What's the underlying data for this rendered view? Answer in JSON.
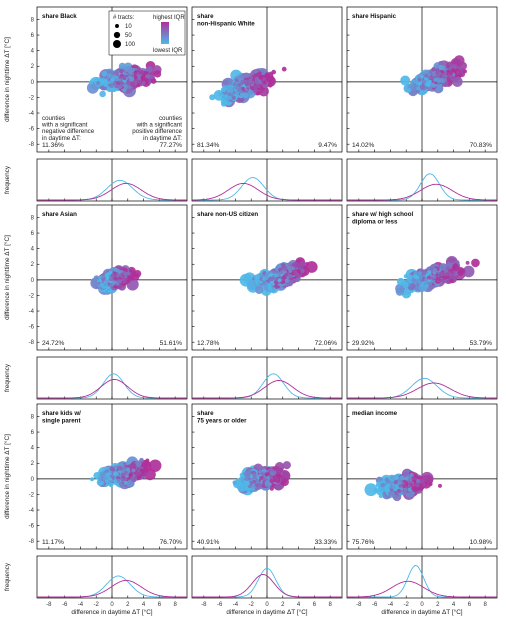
{
  "chart_data": {
    "type": "scatter",
    "colors": {
      "highest": "#b0309a",
      "lowest": "#4fb8e8",
      "frame": "#000000"
    },
    "x_axis": {
      "label": "difference in daytime ΔT [°C]",
      "ticks": [
        -8,
        -6,
        -4,
        -2,
        0,
        2,
        4,
        6,
        8
      ],
      "lim": [
        -9.5,
        9.5
      ]
    },
    "y_axis": {
      "label": "difference in nighttime ΔT [°C]",
      "ticks": [
        -8,
        -6,
        -4,
        -2,
        0,
        2,
        4,
        6,
        8
      ],
      "lim": [
        -9,
        9.6
      ]
    },
    "density_label": "frequency",
    "legend": {
      "title": "# tracts:",
      "sizes": [
        {
          "label": "10",
          "value": 10
        },
        {
          "label": "50",
          "value": 50
        },
        {
          "label": "100",
          "value": 100
        }
      ],
      "color_high": "highest IQR",
      "color_low": "lowest IQR"
    },
    "annotation": {
      "left": "counties\nwith a significant\nnegative difference\nin daytime ΔT:",
      "right": "counties\nwith a significant\npositive difference\nin daytime ΔT:"
    },
    "panels": [
      {
        "title": "share Black",
        "left_pct": "11.36%",
        "right_pct": "77.27%",
        "cx": 1.5,
        "cy": 0.4,
        "spread_x": 2.8,
        "spread_y": 0.9,
        "slope": 0.15,
        "dens_high": {
          "mean": 1.8,
          "sd": 1.9
        },
        "dens_low": {
          "mean": 1.0,
          "sd": 1.6
        }
      },
      {
        "title": "share\nnon-Hispanic White",
        "left_pct": "81.34%",
        "right_pct": "9.47%",
        "cx": -2.5,
        "cy": -0.5,
        "spread_x": 2.6,
        "spread_y": 1.0,
        "slope": 0.35,
        "dens_high": {
          "mean": -3.0,
          "sd": 1.9
        },
        "dens_low": {
          "mean": -1.8,
          "sd": 1.4
        }
      },
      {
        "title": "share Hispanic",
        "left_pct": "14.02%",
        "right_pct": "70.83%",
        "cx": 2.0,
        "cy": 0.6,
        "spread_x": 2.8,
        "spread_y": 0.9,
        "slope": 0.3,
        "dens_high": {
          "mean": 1.8,
          "sd": 2.0
        },
        "dens_low": {
          "mean": 1.0,
          "sd": 1.2
        }
      },
      {
        "title": "share Asian",
        "left_pct": "24.72%",
        "right_pct": "51.61%",
        "cx": 0.3,
        "cy": 0.0,
        "spread_x": 2.0,
        "spread_y": 0.8,
        "slope": 0.2,
        "dens_high": {
          "mean": 0.3,
          "sd": 1.7
        },
        "dens_low": {
          "mean": 0.2,
          "sd": 1.3
        }
      },
      {
        "title": "share non-US citizen",
        "left_pct": "12.78%",
        "right_pct": "72.06%",
        "cx": 1.8,
        "cy": 0.5,
        "spread_x": 2.6,
        "spread_y": 0.9,
        "slope": 0.3,
        "dens_high": {
          "mean": 1.5,
          "sd": 1.8
        },
        "dens_low": {
          "mean": 0.8,
          "sd": 1.3
        }
      },
      {
        "title": "share w/ high school\ndiploma or less",
        "left_pct": "29.92%",
        "right_pct": "53.79%",
        "cx": 1.5,
        "cy": 0.4,
        "spread_x": 3.2,
        "spread_y": 0.9,
        "slope": 0.3,
        "dens_high": {
          "mean": 1.5,
          "sd": 2.1
        },
        "dens_low": {
          "mean": 0.3,
          "sd": 1.6
        }
      },
      {
        "title": "share kids w/\nsingle parent",
        "left_pct": "11.17%",
        "right_pct": "76.70%",
        "cx": 1.5,
        "cy": 0.7,
        "spread_x": 2.6,
        "spread_y": 0.8,
        "slope": 0.2,
        "dens_high": {
          "mean": 1.8,
          "sd": 1.9
        },
        "dens_low": {
          "mean": 0.8,
          "sd": 1.5
        }
      },
      {
        "title": "share\n75 years or older",
        "left_pct": "40.91%",
        "right_pct": "33.33%",
        "cx": -0.4,
        "cy": 0.0,
        "spread_x": 2.3,
        "spread_y": 0.9,
        "slope": 0.1,
        "dens_high": {
          "mean": -0.5,
          "sd": 1.4
        },
        "dens_low": {
          "mean": 0.0,
          "sd": 1.1
        }
      },
      {
        "title": "median income",
        "left_pct": "75.76%",
        "right_pct": "10.98%",
        "cx": -2.2,
        "cy": -0.8,
        "spread_x": 2.4,
        "spread_y": 0.9,
        "slope": 0.15,
        "dens_high": {
          "mean": -1.8,
          "sd": 2.0
        },
        "dens_low": {
          "mean": -0.8,
          "sd": 1.0
        }
      }
    ]
  }
}
